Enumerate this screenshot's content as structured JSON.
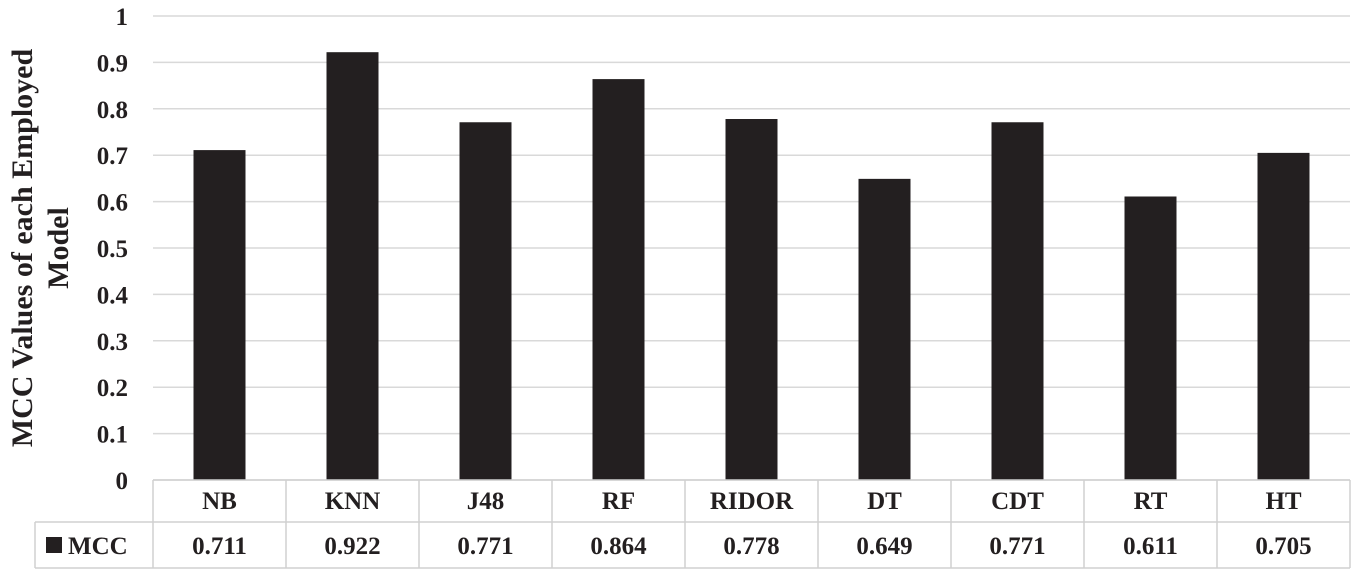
{
  "chart_data": {
    "type": "bar",
    "ylabel_lines": [
      "MCC Values of each Employed",
      "Model"
    ],
    "xlabel": "",
    "ylim": [
      0,
      1
    ],
    "yticks": [
      "0",
      "0.1",
      "0.2",
      "0.3",
      "0.4",
      "0.5",
      "0.6",
      "0.7",
      "0.8",
      "0.9",
      "1"
    ],
    "grid": true,
    "legend_position": "data-table-left",
    "categories": [
      "NB",
      "KNN",
      "J48",
      "RF",
      "RIDOR",
      "DT",
      "CDT",
      "RT",
      "HT"
    ],
    "series": [
      {
        "name": "MCC",
        "color": "#231f20",
        "values": [
          0.711,
          0.922,
          0.771,
          0.864,
          0.778,
          0.649,
          0.771,
          0.611,
          0.705
        ],
        "value_labels": [
          "0.711",
          "0.922",
          "0.771",
          "0.864",
          "0.778",
          "0.649",
          "0.771",
          "0.611",
          "0.705"
        ]
      }
    ]
  }
}
